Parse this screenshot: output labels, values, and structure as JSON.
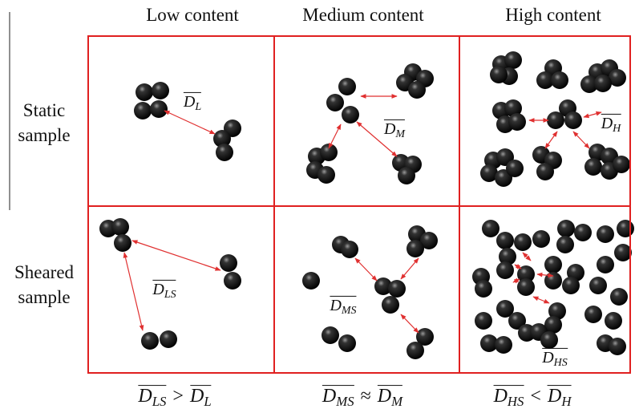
{
  "columns": [
    "Low content",
    "Medium content",
    "High content"
  ],
  "rows": [
    {
      "lines": [
        "Static",
        "sample"
      ]
    },
    {
      "lines": [
        "Sheared",
        "sample"
      ]
    }
  ],
  "cells": [
    [
      {
        "symbol": "D",
        "sub": "L"
      },
      {
        "symbol": "D",
        "sub": "M"
      },
      {
        "symbol": "D",
        "sub": "H"
      }
    ],
    [
      {
        "symbol": "D",
        "sub": "LS"
      },
      {
        "symbol": "D",
        "sub": "MS"
      },
      {
        "symbol": "D",
        "sub": "HS"
      }
    ]
  ],
  "relations": [
    {
      "op": ">"
    },
    {
      "op": "≈"
    },
    {
      "op": "<"
    }
  ]
}
